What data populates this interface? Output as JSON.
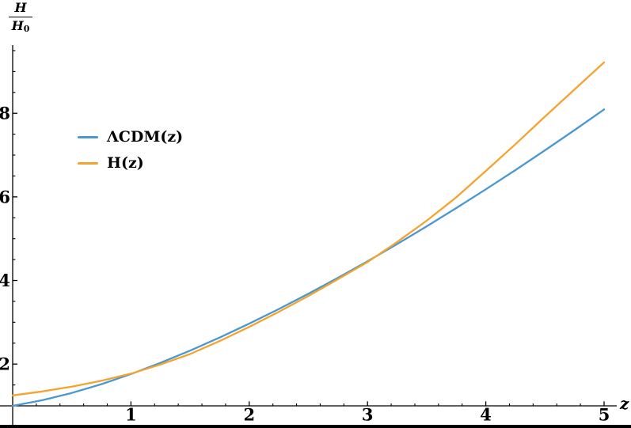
{
  "figure": {
    "background": "#ffffff",
    "axis_color": "#000000",
    "bottom_rule_color": "#000000",
    "ylabel_fraction": {
      "numerator": "H",
      "denominator_base": "H",
      "denominator_sub": "0"
    },
    "xlabel": "z"
  },
  "chart_data": {
    "type": "line",
    "title": "",
    "xlabel": "z",
    "ylabel": "H/H0",
    "xlim": [
      0,
      5.1
    ],
    "ylim": [
      1,
      9.6
    ],
    "grid": false,
    "x_ticks": [
      1,
      2,
      3,
      4,
      5
    ],
    "y_ticks": [
      2,
      4,
      6,
      8
    ],
    "x_minor_tick_step": 0.2,
    "y_minor_tick_step": 0.5,
    "legend_position": "upper-left",
    "x": [
      0,
      0.25,
      0.5,
      0.75,
      1,
      1.25,
      1.5,
      1.75,
      2,
      2.25,
      2.5,
      2.75,
      3,
      3.25,
      3.5,
      3.75,
      4,
      4.25,
      4.5,
      4.75,
      5
    ],
    "series": [
      {
        "name": "ΛCDM(z)",
        "color": "#4A98D1",
        "values": [
          1.0,
          1.134,
          1.309,
          1.519,
          1.761,
          2.029,
          2.321,
          2.634,
          2.966,
          3.317,
          3.683,
          4.064,
          4.461,
          4.871,
          5.295,
          5.732,
          6.181,
          6.642,
          7.114,
          7.598,
          8.093
        ]
      },
      {
        "name": "H(z)",
        "color": "#F5A32E",
        "values": [
          1.25,
          1.345,
          1.46,
          1.6,
          1.77,
          1.99,
          2.24,
          2.55,
          2.89,
          3.25,
          3.63,
          4.03,
          4.44,
          4.92,
          5.43,
          5.99,
          6.62,
          7.26,
          7.92,
          8.57,
          9.22
        ]
      }
    ]
  }
}
